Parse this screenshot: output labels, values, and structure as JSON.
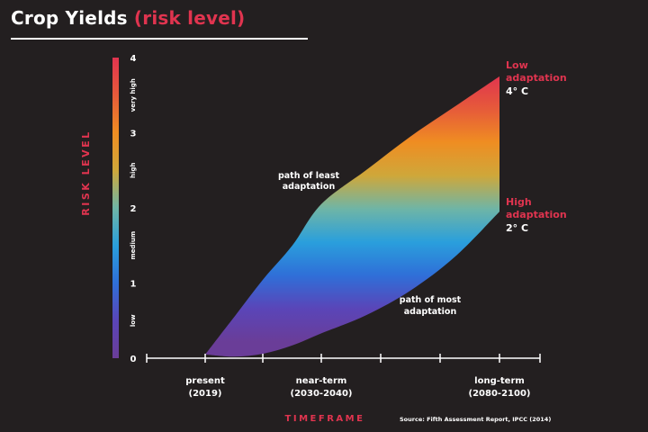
{
  "header": {
    "title_main": "Crop Yields",
    "title_accent": "(risk level)"
  },
  "colors": {
    "background": "#231f20",
    "accent": "#e0344f",
    "text": "#ffffff",
    "gradient": [
      "#e0344f",
      "#e65a3a",
      "#ef8d22",
      "#cfa73a",
      "#6fb5a6",
      "#2a9fdc",
      "#2f6fd8",
      "#5a45b8",
      "#6a3d98"
    ]
  },
  "chart_data": {
    "type": "area",
    "ylabel": "RISK LEVEL",
    "xlabel": "TIMEFRAME",
    "ylim": [
      0,
      4
    ],
    "yticks": [
      "0",
      "1",
      "2",
      "3",
      "4"
    ],
    "risk_bands": [
      {
        "label": "low",
        "from": 0,
        "to": 1
      },
      {
        "label": "medium",
        "from": 1,
        "to": 2
      },
      {
        "label": "high",
        "from": 2,
        "to": 3
      },
      {
        "label": "very high",
        "from": 3,
        "to": 4
      }
    ],
    "categories": [
      {
        "line1": "present",
        "line2": "(2019)"
      },
      {
        "line1": "near-term",
        "line2": "(2030-2040)"
      },
      {
        "line1": "long-term",
        "line2": "(2080-2100)"
      }
    ],
    "x_positions": [
      0,
      1,
      2
    ],
    "series": [
      {
        "name": "path of least adaptation",
        "x": [
          0.0,
          0.25,
          0.5,
          0.75,
          1.0,
          1.25,
          1.5,
          1.75,
          2.0
        ],
        "y": [
          0.05,
          0.55,
          1.05,
          1.5,
          2.05,
          2.5,
          2.95,
          3.35,
          3.75
        ]
      },
      {
        "name": "path of most adaptation",
        "x": [
          0.0,
          0.25,
          0.5,
          0.75,
          1.0,
          1.25,
          1.5,
          1.75,
          2.0
        ],
        "y": [
          0.05,
          0.02,
          0.06,
          0.17,
          0.33,
          0.57,
          0.9,
          1.35,
          1.95
        ]
      }
    ],
    "end_labels": [
      {
        "line1": "Low",
        "line2": "adaptation",
        "temp": "4° C"
      },
      {
        "line1": "High",
        "line2": "adaptation",
        "temp": "2° C"
      }
    ],
    "source": "Source: Fifth Assessment Report, IPCC (2014)",
    "grid": false,
    "legend": "none"
  }
}
